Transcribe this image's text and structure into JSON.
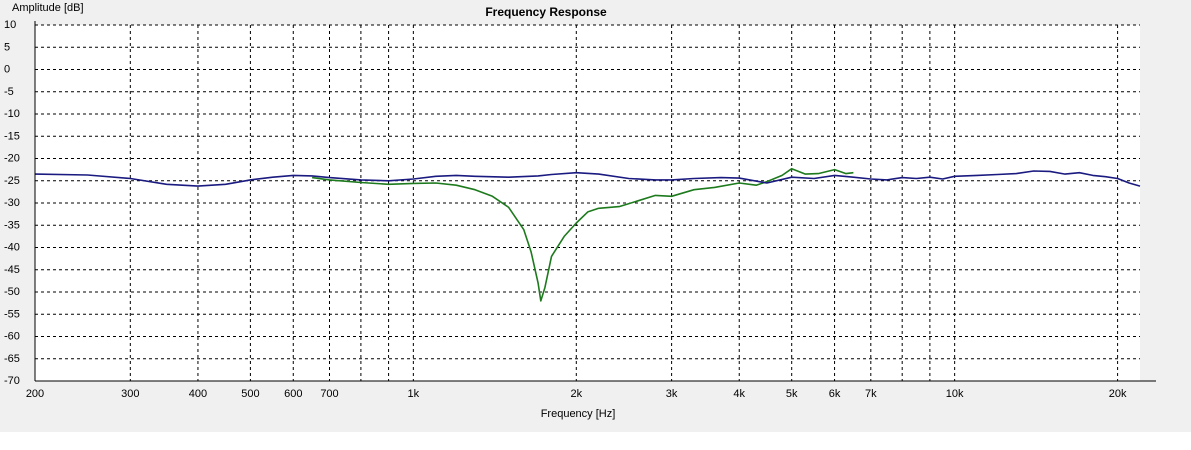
{
  "chart_data": {
    "type": "line",
    "title": "Frequency Response",
    "xlabel": "Frequency [Hz]",
    "ylabel": "Amplitude [dB]",
    "xscale": "log",
    "xlim": [
      200,
      22000
    ],
    "ylim": [
      -70,
      10
    ],
    "grid": true,
    "x_ticks": [
      {
        "value": 200,
        "label": "200"
      },
      {
        "value": 300,
        "label": "300"
      },
      {
        "value": 400,
        "label": "400"
      },
      {
        "value": 500,
        "label": "500"
      },
      {
        "value": 600,
        "label": "600"
      },
      {
        "value": 700,
        "label": "700"
      },
      {
        "value": 1000,
        "label": "1k"
      },
      {
        "value": 2000,
        "label": "2k"
      },
      {
        "value": 3000,
        "label": "3k"
      },
      {
        "value": 4000,
        "label": "4k"
      },
      {
        "value": 5000,
        "label": "5k"
      },
      {
        "value": 6000,
        "label": "6k"
      },
      {
        "value": 7000,
        "label": "7k"
      },
      {
        "value": 10000,
        "label": "10k"
      },
      {
        "value": 20000,
        "label": "20k"
      }
    ],
    "x_minor_grid": [
      800,
      900,
      8000,
      9000
    ],
    "y_ticks": [
      10,
      5,
      0,
      -5,
      -10,
      -15,
      -20,
      -25,
      -30,
      -35,
      -40,
      -45,
      -50,
      -55,
      -60,
      -65,
      -70
    ],
    "series": [
      {
        "color": "#1a1a80",
        "x": [
          200,
          250,
          300,
          350,
          400,
          450,
          500,
          550,
          600,
          650,
          700,
          800,
          900,
          1000,
          1100,
          1200,
          1300,
          1500,
          1700,
          1800,
          2000,
          2200,
          2500,
          2800,
          3000,
          3300,
          3700,
          4000,
          4500,
          5000,
          5500,
          6000,
          6500,
          7000,
          7500,
          8000,
          8500,
          9000,
          9500,
          10000,
          11000,
          12000,
          13000,
          14000,
          15000,
          16000,
          17000,
          18000,
          19000,
          20000,
          21000,
          22000
        ],
        "y": [
          -23.5,
          -23.7,
          -24.5,
          -25.8,
          -26.2,
          -25.8,
          -24.8,
          -24.2,
          -23.8,
          -23.9,
          -24.3,
          -24.8,
          -25.0,
          -24.6,
          -24.0,
          -23.8,
          -24.0,
          -24.2,
          -23.9,
          -23.6,
          -23.2,
          -23.5,
          -24.5,
          -24.8,
          -24.8,
          -24.5,
          -24.3,
          -24.4,
          -25.5,
          -24.2,
          -24.5,
          -23.8,
          -24.2,
          -24.6,
          -24.8,
          -24.3,
          -24.5,
          -24.2,
          -24.6,
          -24.0,
          -23.8,
          -23.6,
          -23.4,
          -22.8,
          -22.9,
          -23.5,
          -23.2,
          -23.8,
          -24.1,
          -24.5,
          -25.5,
          -26.2
        ]
      },
      {
        "color": "#1d7a1d",
        "x": [
          650,
          700,
          800,
          900,
          1000,
          1100,
          1200,
          1300,
          1400,
          1500,
          1600,
          1650,
          1700,
          1720,
          1750,
          1800,
          1900,
          2000,
          2100,
          2200,
          2400,
          2600,
          2800,
          3000,
          3300,
          3600,
          4000,
          4300,
          4500,
          4800,
          5000,
          5300,
          5600,
          6000,
          6300,
          6500
        ],
        "y": [
          -24.3,
          -24.8,
          -25.4,
          -25.8,
          -25.6,
          -25.5,
          -26.0,
          -27.0,
          -28.5,
          -31.0,
          -36.0,
          -41.0,
          -48.0,
          -52.0,
          -49.0,
          -42.0,
          -37.5,
          -34.5,
          -32.0,
          -31.2,
          -30.8,
          -29.5,
          -28.3,
          -28.5,
          -27.0,
          -26.5,
          -25.5,
          -26.0,
          -25.2,
          -23.8,
          -22.3,
          -23.5,
          -23.4,
          -22.5,
          -23.4,
          -23.2
        ]
      }
    ]
  }
}
